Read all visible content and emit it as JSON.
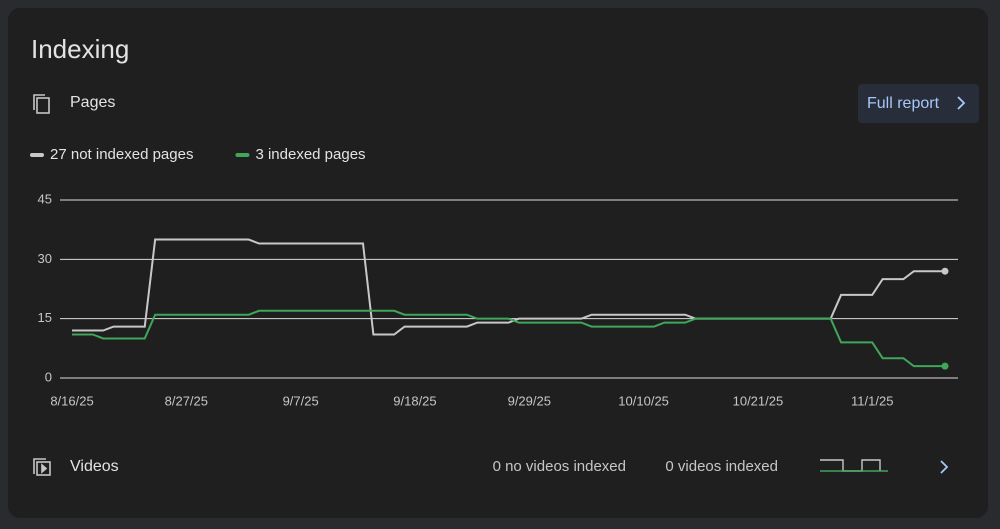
{
  "header": {
    "title": "Indexing"
  },
  "pages": {
    "label": "Pages",
    "button": "Full report"
  },
  "videos": {
    "label": "Videos",
    "stat1": "0 no videos indexed",
    "stat2": "0 videos indexed"
  },
  "chart_data": {
    "type": "line",
    "categories": [
      "8/16/25",
      null,
      null,
      null,
      null,
      null,
      null,
      null,
      null,
      null,
      null,
      "8/27/25",
      null,
      null,
      null,
      null,
      null,
      null,
      null,
      null,
      null,
      null,
      "9/7/25",
      null,
      null,
      null,
      null,
      null,
      null,
      null,
      null,
      null,
      null,
      "9/18/25",
      null,
      null,
      null,
      null,
      null,
      null,
      null,
      null,
      null,
      null,
      "9/29/25",
      null,
      null,
      null,
      null,
      null,
      null,
      null,
      null,
      null,
      null,
      "10/10/25",
      null,
      null,
      null,
      null,
      null,
      null,
      null,
      null,
      null,
      null,
      "10/21/25",
      null,
      null,
      null,
      null,
      null,
      null,
      null,
      null,
      null,
      null,
      "11/1/25",
      null,
      null,
      null,
      null,
      null,
      null,
      null
    ],
    "series": [
      {
        "name": "27 not indexed pages",
        "color": "#c8c8c8",
        "values": [
          12,
          12,
          12,
          12,
          13,
          13,
          13,
          13,
          35,
          35,
          35,
          35,
          35,
          35,
          35,
          35,
          35,
          35,
          34,
          34,
          34,
          34,
          34,
          34,
          34,
          34,
          34,
          34,
          34,
          11,
          11,
          11,
          13,
          13,
          13,
          13,
          13,
          13,
          13,
          14,
          14,
          14,
          14,
          15,
          15,
          15,
          15,
          15,
          15,
          15,
          16,
          16,
          16,
          16,
          16,
          16,
          16,
          16,
          16,
          16,
          15,
          15,
          15,
          15,
          15,
          15,
          15,
          15,
          15,
          15,
          15,
          15,
          15,
          15,
          21,
          21,
          21,
          21,
          25,
          25,
          25,
          27,
          27,
          27,
          27
        ]
      },
      {
        "name": "3 indexed pages",
        "color": "#3fa65a",
        "values": [
          11,
          11,
          11,
          10,
          10,
          10,
          10,
          10,
          16,
          16,
          16,
          16,
          16,
          16,
          16,
          16,
          16,
          16,
          17,
          17,
          17,
          17,
          17,
          17,
          17,
          17,
          17,
          17,
          17,
          17,
          17,
          17,
          16,
          16,
          16,
          16,
          16,
          16,
          16,
          15,
          15,
          15,
          15,
          14,
          14,
          14,
          14,
          14,
          14,
          14,
          13,
          13,
          13,
          13,
          13,
          13,
          13,
          14,
          14,
          14,
          15,
          15,
          15,
          15,
          15,
          15,
          15,
          15,
          15,
          15,
          15,
          15,
          15,
          15,
          9,
          9,
          9,
          9,
          5,
          5,
          5,
          3,
          3,
          3,
          3
        ]
      }
    ],
    "ylim": [
      0,
      45
    ],
    "yticks": [
      0,
      15,
      30,
      45
    ],
    "grid": true
  }
}
